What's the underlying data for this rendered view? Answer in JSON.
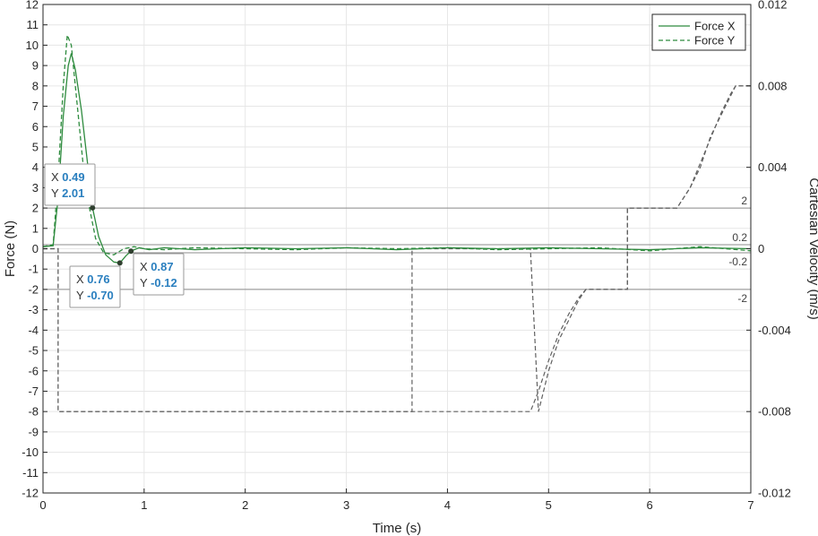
{
  "chart_data": {
    "type": "line",
    "xlabel": "Time (s)",
    "ylabel_left": "Force (N)",
    "ylabel_right": "Cartesian Velocity (m/s)",
    "xlim": [
      0,
      7
    ],
    "ylim_left": [
      -12,
      12
    ],
    "ylim_right": [
      -0.012,
      0.012
    ],
    "x_ticks": [
      "0",
      "1",
      "2",
      "3",
      "4",
      "5",
      "6",
      "7"
    ],
    "y_ticks_left": [
      "12",
      "11",
      "10",
      "9",
      "8",
      "7",
      "6",
      "5",
      "4",
      "3",
      "2",
      "1",
      "0",
      "-1",
      "-2",
      "-3",
      "-4",
      "-5",
      "-6",
      "-7",
      "-8",
      "-9",
      "-10",
      "-11",
      "-12"
    ],
    "y_ticks_right": [
      "0.012",
      "0.008",
      "0.004",
      "0",
      "-0.004",
      "-0.008",
      "-0.012"
    ],
    "grid": true,
    "legend_position": "top-right",
    "series": [
      {
        "name": "Force X",
        "style": "solid",
        "color": "#2e8b3e",
        "x": [
          0,
          0.1,
          0.15,
          0.2,
          0.25,
          0.28,
          0.32,
          0.38,
          0.44,
          0.49,
          0.55,
          0.62,
          0.7,
          0.76,
          0.82,
          0.87,
          0.95,
          1.05,
          1.2,
          1.5,
          2,
          2.5,
          3,
          3.5,
          4,
          4.5,
          5,
          5.5,
          6,
          6.5,
          7
        ],
        "y": [
          0.1,
          0.15,
          2.5,
          6.5,
          9.0,
          9.6,
          8.8,
          6.8,
          4.2,
          2.01,
          0.6,
          -0.3,
          -0.65,
          -0.7,
          -0.35,
          -0.12,
          0.05,
          -0.05,
          0.05,
          -0.05,
          0.05,
          0.0,
          0.05,
          -0.05,
          0.05,
          0.0,
          0.05,
          0.0,
          -0.05,
          0.05,
          0.0
        ]
      },
      {
        "name": "Force Y",
        "style": "dashed",
        "color": "#2e8b3e",
        "x": [
          0,
          0.1,
          0.15,
          0.2,
          0.24,
          0.28,
          0.33,
          0.4,
          0.46,
          0.52,
          0.6,
          0.7,
          0.8,
          0.9,
          1.0,
          1.2,
          1.5,
          2,
          2.5,
          3,
          3.5,
          4,
          4.5,
          5,
          5.5,
          6,
          6.5,
          7
        ],
        "y": [
          0.1,
          0.2,
          3.5,
          8.0,
          10.5,
          10.0,
          7.5,
          4.0,
          2.0,
          0.5,
          -0.2,
          -0.3,
          0.0,
          0.1,
          0.0,
          -0.05,
          0.05,
          0.0,
          -0.05,
          0.05,
          0.0,
          0.05,
          -0.05,
          0.0,
          0.05,
          -0.1,
          0.1,
          -0.1
        ]
      },
      {
        "name": "",
        "axis": "right",
        "style": "dashed",
        "color": "#606060",
        "x": [
          0,
          0.15,
          0.15,
          3.65,
          3.65,
          4.82,
          4.9,
          5.0,
          5.1,
          5.2,
          5.3,
          5.37,
          5.78,
          5.78,
          6.27,
          6.4,
          6.5,
          6.6,
          6.7,
          6.8,
          6.85,
          7
        ],
        "y": [
          0,
          0,
          -0.008,
          -0.008,
          0,
          0,
          -0.008,
          -0.006,
          -0.0045,
          -0.0035,
          -0.0025,
          -0.002,
          -0.002,
          0.002,
          0.002,
          0.003,
          0.004,
          0.0055,
          0.0065,
          0.0075,
          0.008,
          0.008
        ]
      },
      {
        "name": "",
        "axis": "right",
        "style": "dashed",
        "color": "#606060",
        "x": [
          0,
          0.15,
          0.15,
          3.65,
          3.65,
          4.82,
          4.9,
          5.0,
          5.1,
          5.2,
          5.3,
          5.37,
          5.78,
          5.78,
          6.27,
          6.4,
          6.5,
          6.6,
          6.7,
          6.8,
          6.85,
          7
        ],
        "y": [
          0,
          0,
          -0.008,
          -0.008,
          -0.008,
          -0.008,
          -0.007,
          -0.0055,
          -0.0042,
          -0.0032,
          -0.0024,
          -0.002,
          -0.002,
          0.002,
          0.002,
          0.003,
          0.0042,
          0.0054,
          0.0066,
          0.0076,
          0.008,
          0.008
        ]
      }
    ],
    "reference_lines": [
      {
        "y": 2,
        "label": "2"
      },
      {
        "y": 0.2,
        "label": "0.2"
      },
      {
        "y": -0.2,
        "label": "-0.2"
      },
      {
        "y": -2,
        "label": "-2"
      }
    ],
    "datatips": [
      {
        "x_label": "X",
        "x": "0.49",
        "y_label": "Y",
        "y": "2.01",
        "px": 0.49,
        "py": 2.01
      },
      {
        "x_label": "X",
        "x": "0.76",
        "y_label": "Y",
        "y": "-0.70",
        "px": 0.76,
        "py": -0.7
      },
      {
        "x_label": "X",
        "x": "0.87",
        "y_label": "Y",
        "y": "-0.12",
        "px": 0.87,
        "py": -0.12
      }
    ],
    "legend": [
      "Force X",
      "Force Y"
    ]
  }
}
